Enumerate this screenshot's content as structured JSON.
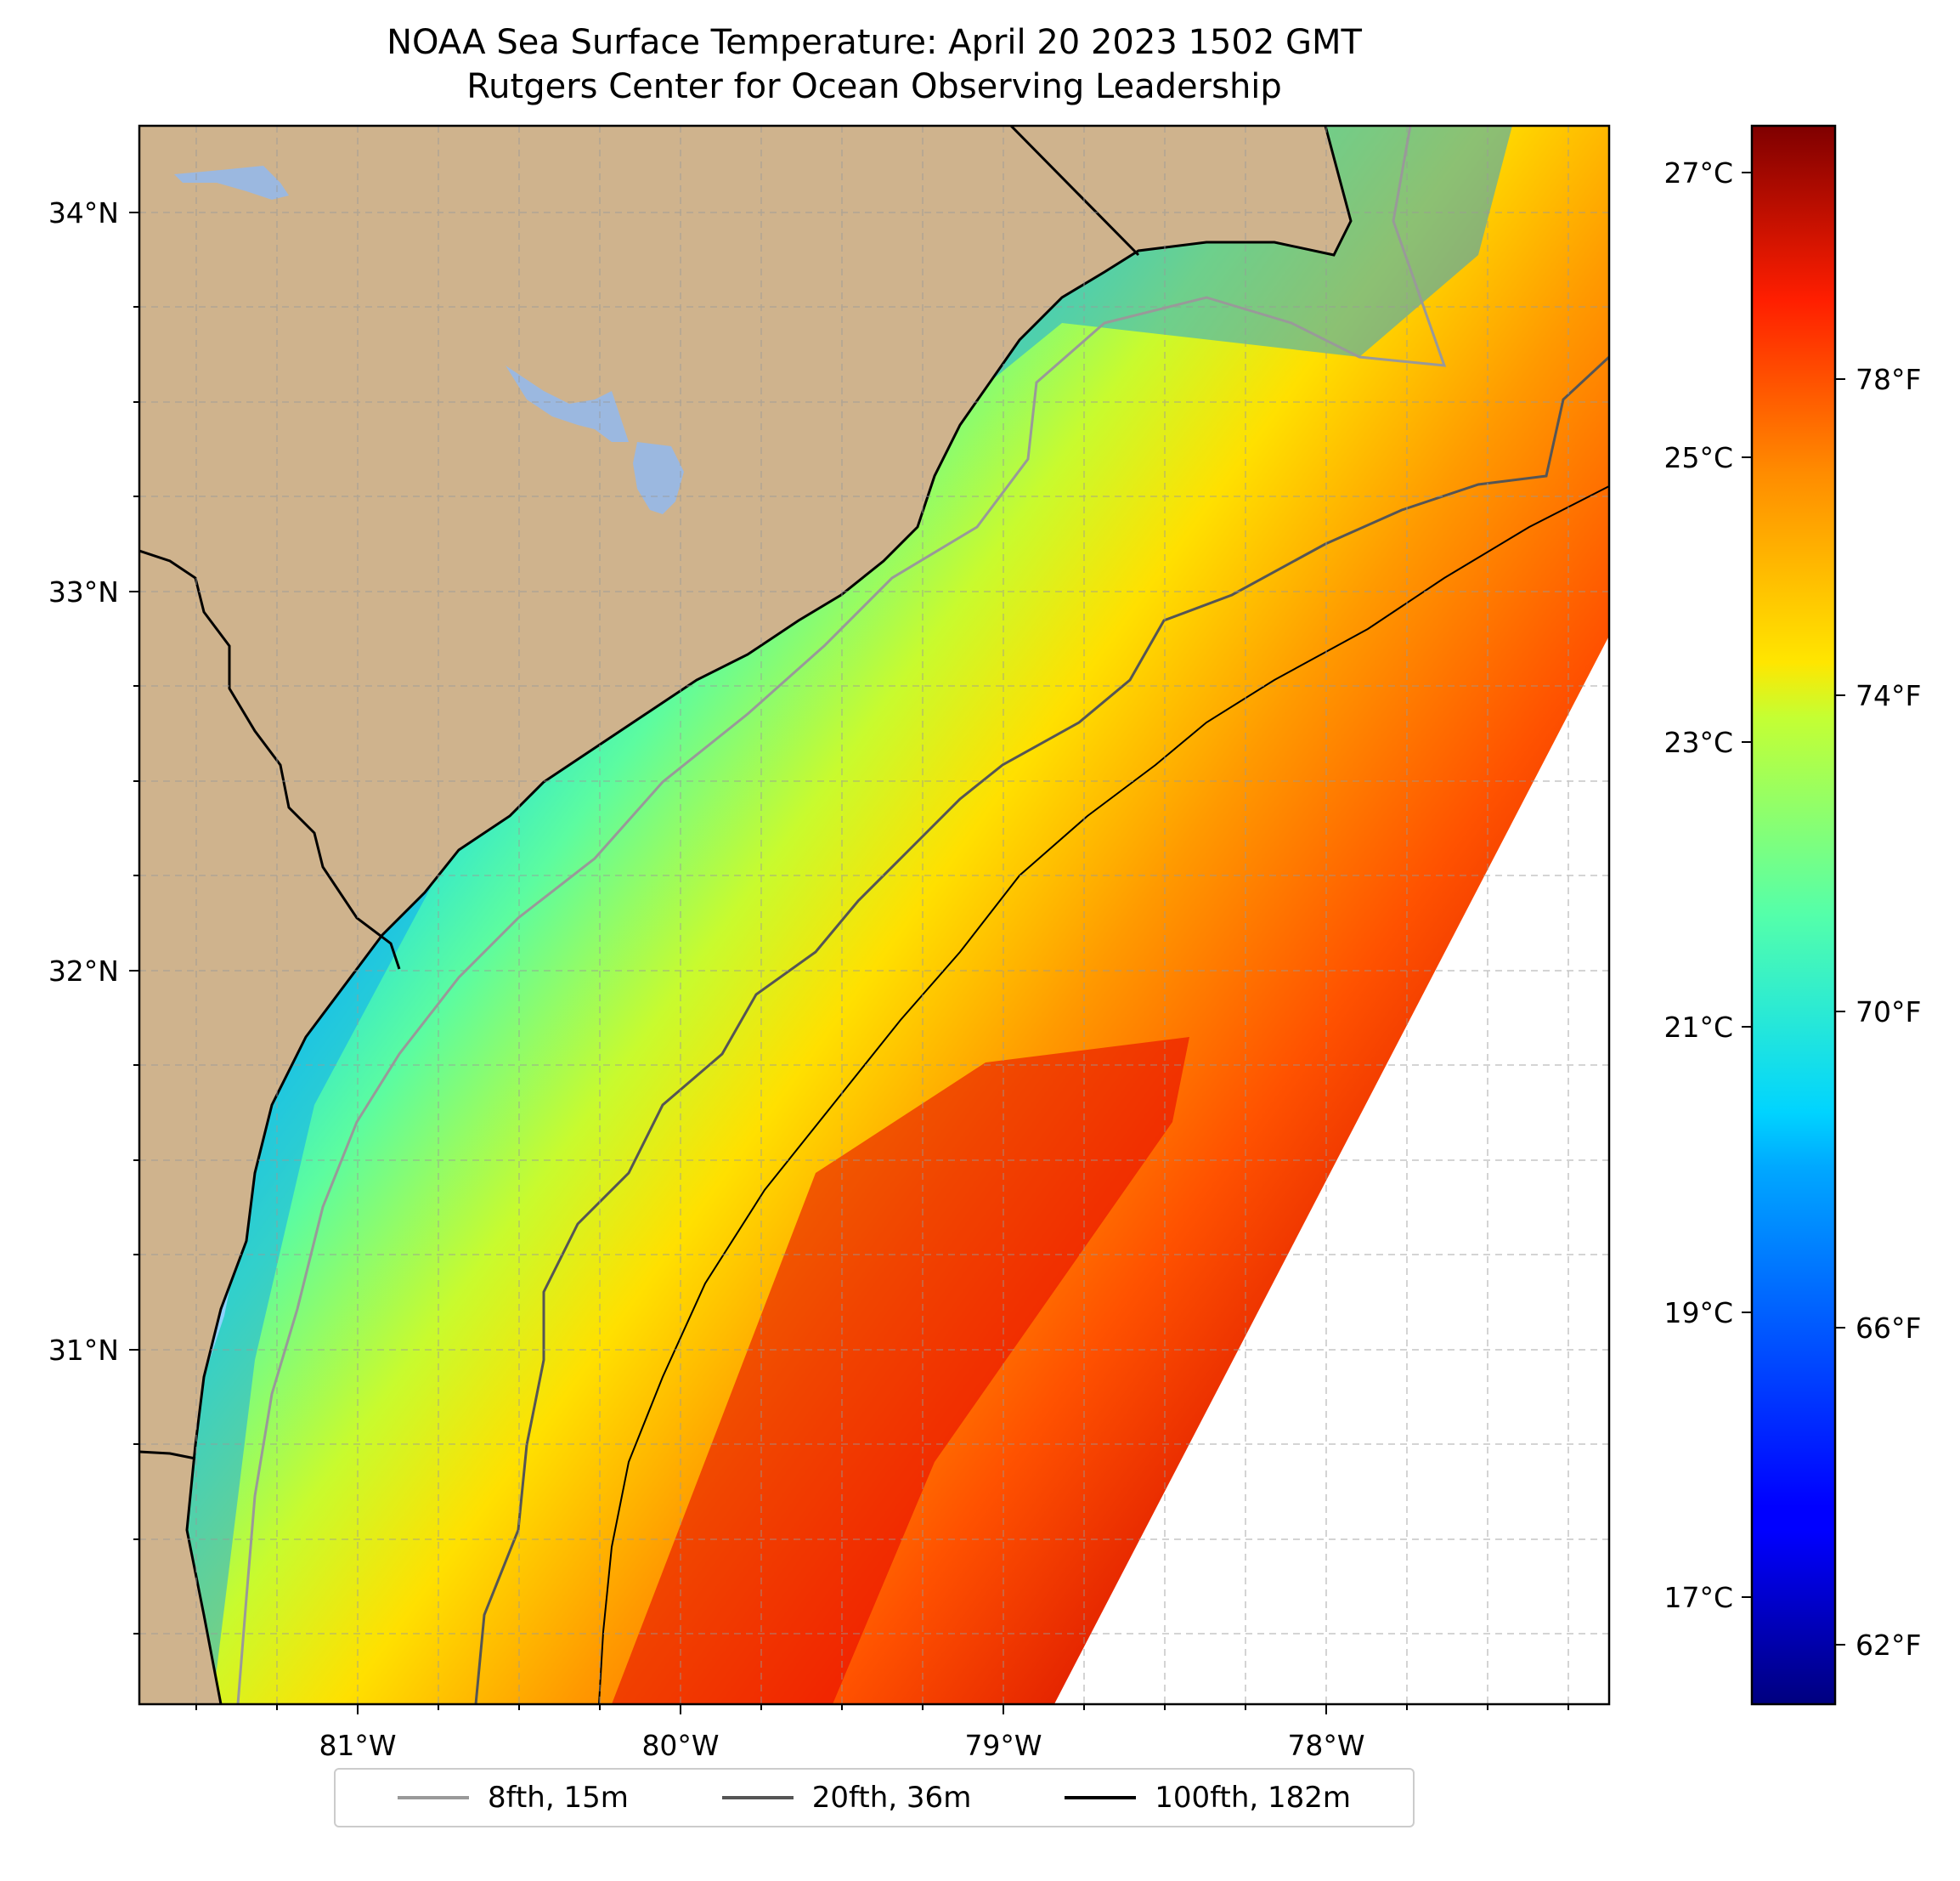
{
  "title_line1": "NOAA Sea Surface Temperature: April 20 2023 1502 GMT",
  "title_line2": "Rutgers Center for Ocean Observing Leadership",
  "colors": {
    "land": "#cfb38d",
    "lakes": "#9bb8e0",
    "contour_8fth": "#999999",
    "contour_20fth": "#555555",
    "contour_100fth": "#000000",
    "colormap": "jet"
  },
  "map": {
    "lon_range": [
      -81.68,
      -77.12
    ],
    "lat_range": [
      30.15,
      34.22
    ],
    "lon_ticks": [
      "81°W",
      "80°W",
      "79°W",
      "78°W"
    ],
    "lat_ticks": [
      "34°N",
      "33°N",
      "32°N",
      "31°N"
    ],
    "gridlines": true,
    "gridline_style": "dashed"
  },
  "colorbar": {
    "range_f": [
      61,
      81.5
    ],
    "celsius_ticks": [
      "27°C",
      "25°C",
      "23°C",
      "21°C",
      "19°C",
      "17°C"
    ],
    "fahrenheit_ticks": [
      "78°F",
      "74°F",
      "70°F",
      "66°F",
      "62°F"
    ]
  },
  "legend": {
    "placement": "bottom-center",
    "entries": [
      {
        "label": "8fth, 15m",
        "color": "#999999"
      },
      {
        "label": "20fth, 36m",
        "color": "#555555"
      },
      {
        "label": "100fth, 182m",
        "color": "#000000"
      }
    ]
  }
}
